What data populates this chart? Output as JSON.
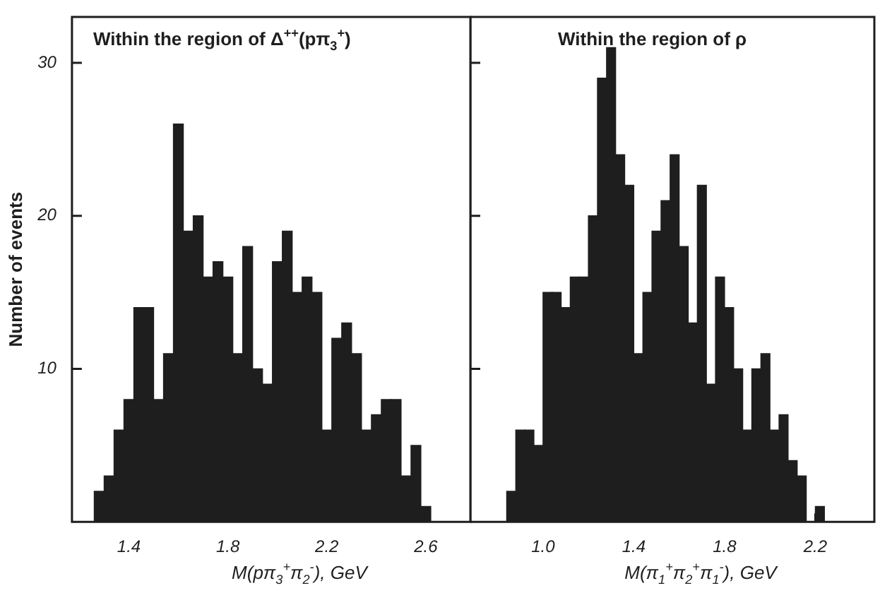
{
  "chart_data": [
    {
      "type": "histogram",
      "title": "Within the region of Δ$^{++}$(pπ$_{3}$$^{+}$)",
      "xlabel": "M(pπ$_{3}$$^{+}$π$_{2}$$^{-}$), GeV",
      "ylabel": "Number of events",
      "color": "#1e1e1e",
      "bins": [
        1.26,
        1.3,
        1.34,
        1.38,
        1.42,
        1.46,
        1.5,
        1.54,
        1.58,
        1.62,
        1.66,
        1.7,
        1.74,
        1.78,
        1.82,
        1.86,
        1.9,
        1.94,
        1.98,
        2.02,
        2.06,
        2.1,
        2.14,
        2.18,
        2.22,
        2.26,
        2.3,
        2.34,
        2.38,
        2.42,
        2.46,
        2.5,
        2.54,
        2.58,
        2.62
      ],
      "values": [
        2,
        3,
        6,
        8,
        14,
        14,
        8,
        11,
        26,
        19,
        20,
        16,
        17,
        16,
        11,
        18,
        10,
        9,
        17,
        19,
        15,
        16,
        15,
        6,
        12,
        13,
        11,
        6,
        7,
        8,
        8,
        3,
        5,
        1
      ],
      "xlim": [
        1.17,
        2.78
      ],
      "xticks": [
        1.4,
        1.8,
        2.2,
        2.6
      ],
      "ylim": [
        0,
        33
      ],
      "yticks": [
        10,
        20,
        30
      ]
    },
    {
      "type": "histogram",
      "title": "Within the region of ρ",
      "xlabel": "M(π$_{1}$$^{+}$π$_{2}$$^{+}$π$_{1}$$^{-}$), GeV",
      "color": "#1e1e1e",
      "bins": [
        0.84,
        0.88,
        0.92,
        0.96,
        1.0,
        1.04,
        1.08,
        1.12,
        1.16,
        1.2,
        1.24,
        1.28,
        1.32,
        1.36,
        1.4,
        1.44,
        1.48,
        1.52,
        1.56,
        1.6,
        1.64,
        1.68,
        1.72,
        1.76,
        1.8,
        1.84,
        1.88,
        1.92,
        1.96,
        2.0,
        2.04,
        2.08,
        2.12,
        2.16,
        2.2,
        2.24
      ],
      "values": [
        2,
        6,
        6,
        5,
        15,
        15,
        14,
        16,
        16,
        20,
        29,
        31,
        24,
        22,
        11,
        15,
        19,
        21,
        24,
        18,
        13,
        22,
        9,
        16,
        14,
        10,
        6,
        10,
        11,
        6,
        7,
        4,
        3,
        0,
        1
      ],
      "xlim": [
        0.68,
        2.46
      ],
      "xticks": [
        {
          "value": 1,
          "label": "1.0"
        },
        1.4,
        1.8,
        2.2
      ],
      "ylim": [
        0,
        33
      ],
      "yticks": [
        10,
        20,
        30
      ],
      "tick_labels": "x"
    }
  ]
}
